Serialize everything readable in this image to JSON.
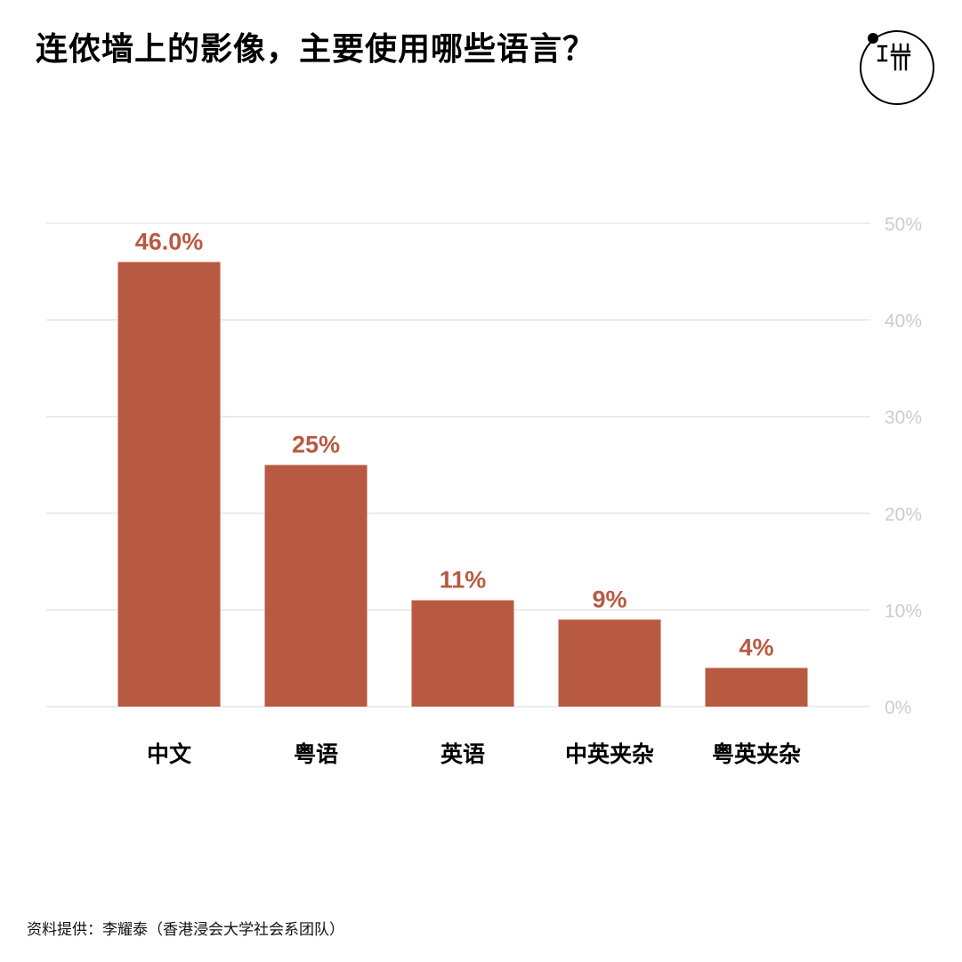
{
  "title": "连侬墙上的影像，主要使用哪些语言？",
  "source": "资料提供：李耀泰（香港浸会大学社会系团队）",
  "colors": {
    "bar": "#b85a42",
    "value_label": "#b85a42",
    "grid": "#d9d9d9",
    "tick_label": "#cccccc",
    "text": "#000000"
  },
  "chart_data": {
    "type": "bar",
    "categories": [
      "中文",
      "粤语",
      "英语",
      "中英夹杂",
      "粤英夹杂"
    ],
    "values": [
      46.0,
      25,
      11,
      9,
      4
    ],
    "data_labels": [
      "46.0%",
      "25%",
      "11%",
      "9%",
      "4%"
    ],
    "ylim": [
      0,
      50
    ],
    "yticks": [
      0,
      10,
      20,
      30,
      40,
      50
    ],
    "ytick_labels": [
      "0%",
      "10%",
      "20%",
      "30%",
      "40%",
      "50%"
    ],
    "grid": true,
    "y_axis_position": "right"
  }
}
